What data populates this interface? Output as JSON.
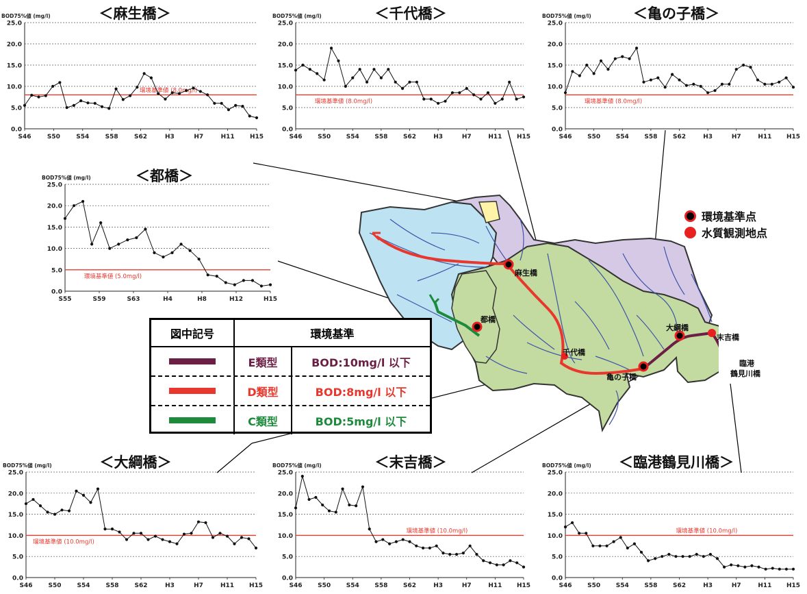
{
  "legend_map": {
    "standard_point": "環境基準点",
    "observation_point": "水質観測地点"
  },
  "standards_table": {
    "header_symbol": "図中記号",
    "header_standard": "環境基準",
    "rows": [
      {
        "type": "E類型",
        "standard": "BOD:10mg/l 以下",
        "color": "#6b1f44"
      },
      {
        "type": "D類型",
        "standard": "BOD:8mg/l 以下",
        "color": "#e8382d"
      },
      {
        "type": "C類型",
        "standard": "BOD:5mg/l 以下",
        "color": "#1e8a3c"
      }
    ]
  },
  "map_labels": {
    "asobashi": "麻生橋",
    "chiyobashi": "千代橋",
    "kamenokobashi": "亀の子橋",
    "miyakobashi": "都橋",
    "otsunabashi": "大綱橋",
    "sueyoshibashi": "末吉橋",
    "rinko_line1": "臨港",
    "rinko_line2": "鶴見川橋"
  },
  "colors": {
    "standard_line": "#e8382d",
    "series": "#111111",
    "grid": "#555555"
  },
  "chart_data": [
    {
      "type": "line",
      "title": "＜麻生橋＞",
      "ylabel": "BOD75%値 (mg/l)",
      "ylim": [
        0,
        25
      ],
      "yticks": [
        "0.0",
        "5.0",
        "10.0",
        "15.0",
        "20.0",
        "25.0"
      ],
      "xticks": [
        "S46",
        "S50",
        "S54",
        "S58",
        "S62",
        "H3",
        "H7",
        "H11",
        "H15"
      ],
      "standard": {
        "value": 8.0,
        "label": "環境基準値 (8.0mg/l)"
      },
      "values": [
        5.5,
        7.9,
        7.5,
        7.8,
        10.0,
        10.9,
        5.0,
        5.5,
        6.6,
        6.1,
        6.0,
        5.2,
        4.8,
        9.4,
        6.9,
        7.8,
        9.8,
        13.0,
        12.0,
        8.3,
        7.0,
        8.5,
        8.3,
        9.0,
        9.6,
        8.8,
        8.0,
        6.0,
        6.0,
        4.5,
        5.5,
        5.3,
        3.0,
        2.6
      ]
    },
    {
      "type": "line",
      "title": "＜千代橋＞",
      "ylabel": "BOD75%値 (mg/l)",
      "ylim": [
        0,
        25
      ],
      "yticks": [
        "0.0",
        "5.0",
        "10.0",
        "15.0",
        "20.0",
        "25.0"
      ],
      "xticks": [
        "S46",
        "S50",
        "S54",
        "S58",
        "S62",
        "H3",
        "H7",
        "H11",
        "H15"
      ],
      "standard": {
        "value": 8.0,
        "label": "環境基準値 (8.0mg/l)"
      },
      "values": [
        13.8,
        15.0,
        14.0,
        13.0,
        11.5,
        19.0,
        16.0,
        10.0,
        12.0,
        14.0,
        11.0,
        14.0,
        12.0,
        14.0,
        11.0,
        9.5,
        11.0,
        11.0,
        7.0,
        7.0,
        6.0,
        6.5,
        8.5,
        8.5,
        9.5,
        8.0,
        7.0,
        8.5,
        6.0,
        7.0,
        11.0,
        7.0,
        7.5
      ]
    },
    {
      "type": "line",
      "title": "＜亀の子橋＞",
      "ylabel": "BOD75%値 (mg/l)",
      "ylim": [
        0,
        25
      ],
      "yticks": [
        "0.0",
        "5.0",
        "10.0",
        "15.0",
        "20.0",
        "25.0"
      ],
      "xticks": [
        "S46",
        "S50",
        "S54",
        "S58",
        "S62",
        "H3",
        "H7",
        "H11",
        "H15"
      ],
      "standard": {
        "value": 8.0,
        "label": "環境基準値 (8.0mg/l)"
      },
      "values": [
        8.5,
        13.5,
        12.5,
        15.0,
        13.0,
        16.0,
        14.0,
        16.5,
        17.0,
        16.5,
        19.0,
        11.0,
        11.5,
        12.0,
        9.8,
        12.8,
        11.5,
        10.2,
        10.5,
        10.0,
        8.5,
        9.0,
        10.5,
        10.5,
        14.0,
        15.0,
        14.5,
        11.5,
        10.5,
        10.5,
        11.0,
        12.0,
        9.8
      ]
    },
    {
      "type": "line",
      "title": "＜都橋＞",
      "ylabel": "BOD75%値 (mg/l)",
      "ylim": [
        0,
        25
      ],
      "yticks": [
        "0.0",
        "5.0",
        "10.0",
        "15.0",
        "20.0",
        "25.0"
      ],
      "xticks": [
        "S55",
        "S59",
        "S63",
        "H4",
        "H8",
        "H12",
        "H15"
      ],
      "standard": {
        "value": 5.0,
        "label": "環境基準値 (5.0mg/l)"
      },
      "values": [
        17.0,
        20.0,
        21.0,
        11.0,
        16.0,
        10.0,
        11.0,
        12.0,
        12.5,
        14.5,
        9.0,
        8.0,
        9.0,
        11.0,
        9.5,
        7.5,
        3.8,
        3.5,
        2.0,
        1.5,
        2.5,
        2.5,
        1.2,
        1.5
      ]
    },
    {
      "type": "line",
      "title": "＜大綱橋＞",
      "ylabel": "BOD75%値 (mg/l)",
      "ylim": [
        0,
        25
      ],
      "yticks": [
        "0.0",
        "5.0",
        "10.0",
        "15.0",
        "20.0",
        "25.0"
      ],
      "xticks": [
        "S46",
        "S50",
        "S54",
        "S58",
        "S62",
        "H3",
        "H7",
        "H11",
        "H15"
      ],
      "standard": {
        "value": 10.0,
        "label": "環境基準値 (10.0mg/l)"
      },
      "values": [
        17.5,
        18.5,
        17.0,
        15.5,
        15.0,
        16.0,
        15.8,
        20.5,
        19.5,
        17.8,
        21.0,
        11.5,
        11.5,
        10.8,
        9.0,
        10.5,
        10.5,
        9.0,
        9.8,
        9.0,
        8.5,
        8.0,
        10.3,
        10.5,
        13.2,
        13.0,
        9.5,
        10.5,
        9.8,
        8.0,
        9.5,
        9.2,
        7.0
      ]
    },
    {
      "type": "line",
      "title": "＜末吉橋＞",
      "ylabel": "BOD75%値 (mg/l)",
      "ylim": [
        0,
        25
      ],
      "yticks": [
        "0.0",
        "5.0",
        "10.0",
        "15.0",
        "20.0",
        "25.0"
      ],
      "xticks": [
        "S46",
        "S50",
        "S54",
        "S58",
        "S62",
        "H3",
        "H7",
        "H11",
        "H15"
      ],
      "standard": {
        "value": 10.0,
        "label": "環境基準値 (10.0mg/l)"
      },
      "values": [
        16.5,
        24.0,
        18.5,
        19.0,
        17.2,
        15.8,
        15.5,
        21.0,
        17.2,
        17.0,
        21.5,
        11.5,
        8.5,
        9.0,
        8.0,
        8.5,
        9.0,
        8.5,
        7.5,
        7.0,
        7.0,
        7.5,
        5.8,
        5.5,
        5.5,
        5.8,
        7.5,
        5.5,
        4.0,
        3.5,
        3.0,
        3.0,
        4.0,
        3.5,
        2.5
      ]
    },
    {
      "type": "line",
      "title": "＜臨港鶴見川橋＞",
      "ylabel": "BOD75%値 (mg/l)",
      "ylim": [
        0,
        25
      ],
      "yticks": [
        "0.0",
        "5.0",
        "10.0",
        "15.0",
        "20.0",
        "25.0"
      ],
      "xticks": [
        "S46",
        "S50",
        "S54",
        "S58",
        "S62",
        "H3",
        "H7",
        "H11",
        "H15"
      ],
      "standard": {
        "value": 10.0,
        "label": "環境基準値 (10.0mg/l)"
      },
      "values": [
        12.0,
        13.0,
        10.5,
        10.5,
        7.5,
        7.5,
        7.5,
        8.5,
        9.5,
        7.0,
        8.0,
        6.0,
        4.0,
        4.5,
        5.0,
        5.5,
        5.0,
        5.0,
        5.0,
        5.5,
        5.0,
        5.5,
        4.5,
        2.5,
        3.0,
        2.8,
        2.5,
        2.8,
        2.5,
        2.0,
        2.2,
        2.0,
        2.0,
        2.0
      ]
    }
  ]
}
